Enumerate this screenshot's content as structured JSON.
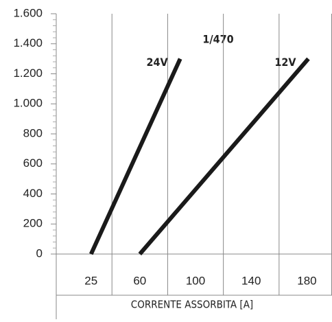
{
  "chart_data": {
    "type": "line",
    "xlabel": "CORRENTE ASSORBITA [A]",
    "annotation": "1/470",
    "series": [
      {
        "name": "24V",
        "color": "#1a1a1a",
        "x": [
          25,
          89
        ],
        "values": [
          0,
          1300
        ]
      },
      {
        "name": "12V",
        "color": "#1a1a1a",
        "x": [
          60,
          181
        ],
        "values": [
          0,
          1300
        ]
      }
    ],
    "xlim": [
      0,
      198
    ],
    "xticks": [
      25,
      60,
      100,
      140,
      180
    ],
    "xgrid": [
      40,
      80,
      120,
      160
    ],
    "ylim": [
      0,
      1600
    ],
    "yticks": [
      0,
      200,
      400,
      600,
      800,
      {
        "value": 1000,
        "label": "1.000"
      },
      {
        "value": 1200,
        "label": "1.200"
      },
      {
        "value": 1400,
        "label": "1.400"
      },
      {
        "value": 1600,
        "label": "1.600"
      }
    ],
    "grid": true
  }
}
